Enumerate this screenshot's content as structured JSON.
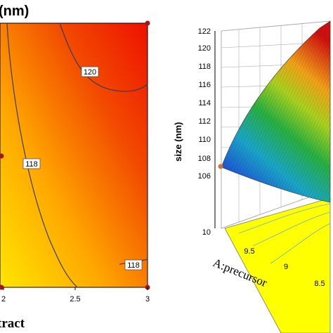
{
  "chart_data": [
    {
      "type": "heatmap",
      "title": "(nm)",
      "xlabel": "tract",
      "x_ticks": [
        "2",
        "2.5",
        "3"
      ],
      "xlim": [
        2,
        3
      ],
      "contours": [
        {
          "label": "120",
          "value": 120
        },
        {
          "label": "118",
          "value": 118
        },
        {
          "label": "118",
          "value": 118
        }
      ],
      "design_points": [
        {
          "x": 3,
          "y": "top"
        },
        {
          "x": 3,
          "y": "bottom"
        },
        {
          "x": 2,
          "y": "middle"
        },
        {
          "x": 2,
          "y": "bottom"
        }
      ],
      "colors": {
        "low": "#ffe600",
        "high": "#ee1100",
        "contour": "#3a3a5c",
        "point": "#a01818"
      }
    },
    {
      "type": "surface",
      "zlabel": "size (nm)",
      "z_ticks": [
        "106",
        "108",
        "110",
        "112",
        "114",
        "116",
        "118",
        "120",
        "122"
      ],
      "zlim": [
        106,
        122
      ],
      "ylabel": "A:precursor",
      "y_ticks": [
        "10",
        "9.5",
        "9",
        "8.5"
      ],
      "colors": {
        "low": "#1f3bd6",
        "mid": "#28b040",
        "high": "#e01010",
        "floor": "#ffff00",
        "point": "#c87830"
      }
    }
  ]
}
